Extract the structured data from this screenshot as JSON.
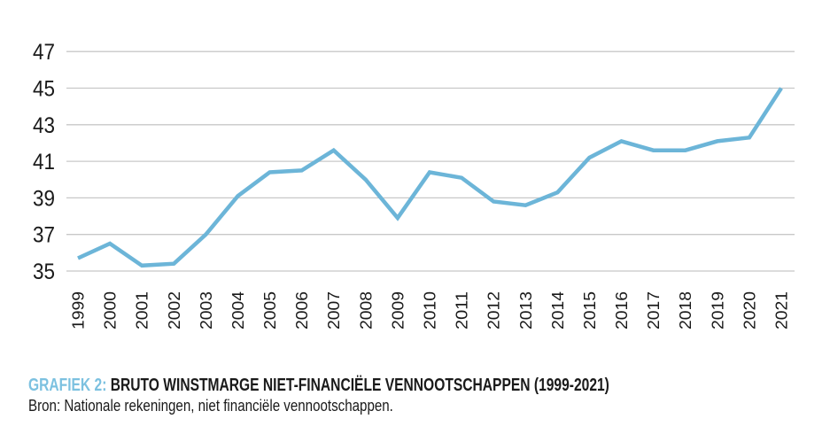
{
  "chart_data": {
    "type": "line",
    "x": [
      1999,
      2000,
      2001,
      2002,
      2003,
      2004,
      2005,
      2006,
      2007,
      2008,
      2009,
      2010,
      2011,
      2012,
      2013,
      2014,
      2015,
      2016,
      2017,
      2018,
      2019,
      2020,
      2021
    ],
    "series": [
      {
        "name": "Bruto winstmarge niet-financiële vennootschappen",
        "values": [
          35.7,
          36.5,
          35.3,
          35.4,
          37.0,
          39.1,
          40.4,
          40.5,
          41.6,
          40.0,
          37.9,
          40.4,
          40.1,
          38.8,
          38.6,
          39.3,
          41.2,
          42.1,
          41.6,
          41.6,
          42.1,
          42.3,
          45.0
        ]
      }
    ],
    "ylim": [
      35,
      47
    ],
    "yticks": [
      35,
      37,
      39,
      41,
      43,
      45,
      47
    ],
    "xlabel": "",
    "ylabel": "",
    "grid": "horizontal",
    "legend": "none"
  },
  "caption": {
    "label": "GRAFIEK 2:",
    "title": " BRUTO WINSTMARGE NIET-FINANCIËLE VENNOOTSCHAPPEN (1999-2021)",
    "source": "Bron: Nationale rekeningen, niet financiële vennootschappen."
  },
  "colors": {
    "line": "#6cb5d8",
    "grid": "#c8c8c8",
    "tick_text": "#1a1a1a",
    "caption_text": "#1a1a1a",
    "caption_accent": "#7cc1e0"
  }
}
